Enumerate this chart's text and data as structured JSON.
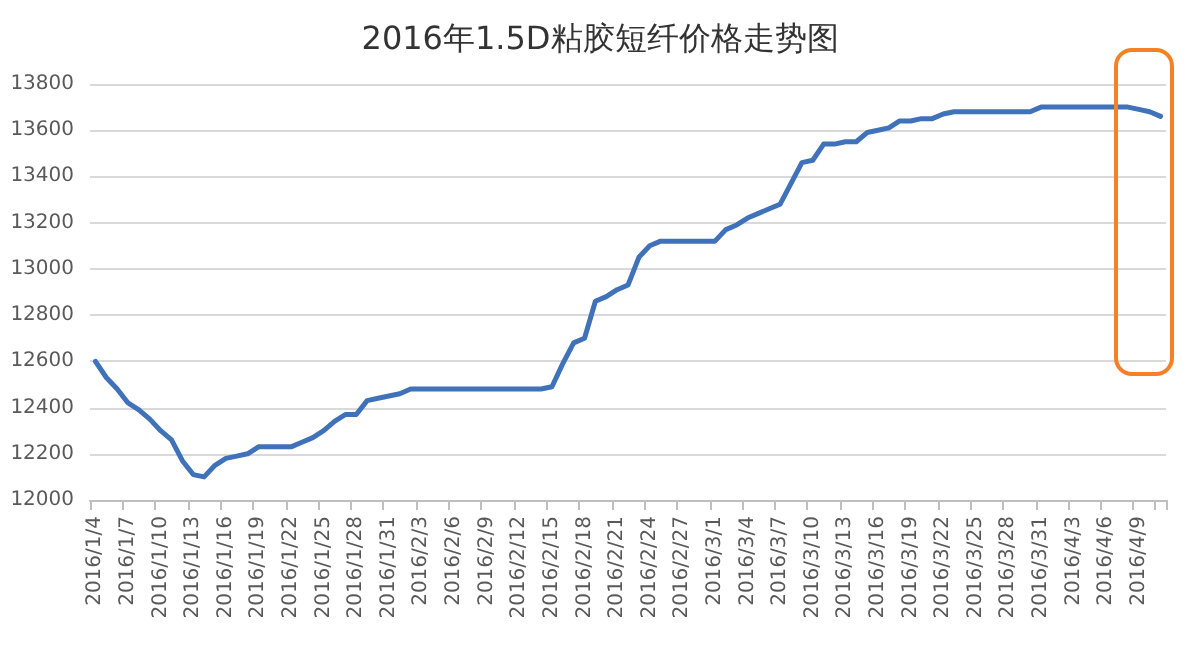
{
  "chart_data": {
    "type": "line",
    "title": "2016年1.5D粘胶短纤价格走势图",
    "categories": [
      "2016/1/4",
      null,
      null,
      "2016/1/7",
      null,
      null,
      "2016/1/10",
      null,
      null,
      "2016/1/13",
      null,
      null,
      "2016/1/16",
      null,
      null,
      "2016/1/19",
      null,
      null,
      "2016/1/22",
      null,
      null,
      "2016/1/25",
      null,
      null,
      "2016/1/28",
      null,
      null,
      "2016/1/31",
      null,
      null,
      "2016/2/3",
      null,
      null,
      "2016/2/6",
      null,
      null,
      "2016/2/9",
      null,
      null,
      "2016/2/12",
      null,
      null,
      "2016/2/15",
      null,
      null,
      "2016/2/18",
      null,
      null,
      "2016/2/21",
      null,
      null,
      "2016/2/24",
      null,
      null,
      "2016/2/27",
      null,
      null,
      "2016/3/1",
      null,
      null,
      "2016/3/4",
      null,
      null,
      "2016/3/7",
      null,
      null,
      "2016/3/10",
      null,
      null,
      "2016/3/13",
      null,
      null,
      "2016/3/16",
      null,
      null,
      "2016/3/19",
      null,
      null,
      "2016/3/22",
      null,
      null,
      "2016/3/25",
      null,
      null,
      "2016/3/28",
      null,
      null,
      "2016/3/31",
      null,
      null,
      "2016/4/3",
      null,
      null,
      "2016/4/6",
      null,
      null,
      "2016/4/9",
      null,
      null
    ],
    "series": [
      {
        "color": "#3f72b8",
        "values": [
          12600,
          12530,
          12480,
          12420,
          12390,
          12350,
          12300,
          12260,
          12170,
          12110,
          12100,
          12150,
          12180,
          12190,
          12200,
          12230,
          12230,
          12230,
          12230,
          12250,
          12270,
          12300,
          12340,
          12370,
          12370,
          12430,
          12440,
          12450,
          12460,
          12480,
          12480,
          12480,
          12480,
          12480,
          12480,
          12480,
          12480,
          12480,
          12480,
          12480,
          12480,
          12480,
          12490,
          12590,
          12680,
          12700,
          12860,
          12880,
          12910,
          12930,
          13050,
          13100,
          13120,
          13120,
          13120,
          13120,
          13120,
          13120,
          13170,
          13190,
          13220,
          13240,
          13260,
          13280,
          13370,
          13460,
          13470,
          13540,
          13540,
          13550,
          13550,
          13590,
          13600,
          13610,
          13640,
          13640,
          13650,
          13650,
          13670,
          13680,
          13680,
          13680,
          13680,
          13680,
          13680,
          13680,
          13680,
          13700,
          13700,
          13700,
          13700,
          13700,
          13700,
          13700,
          13700,
          13700,
          13690,
          13680,
          13660
        ]
      }
    ],
    "ylim": [
      12000,
      13800
    ],
    "yticks": [
      12000,
      12200,
      12400,
      12600,
      12800,
      13000,
      13200,
      13400,
      13600,
      13800
    ],
    "grid": "y",
    "marker": "none",
    "line_style": "solid"
  }
}
